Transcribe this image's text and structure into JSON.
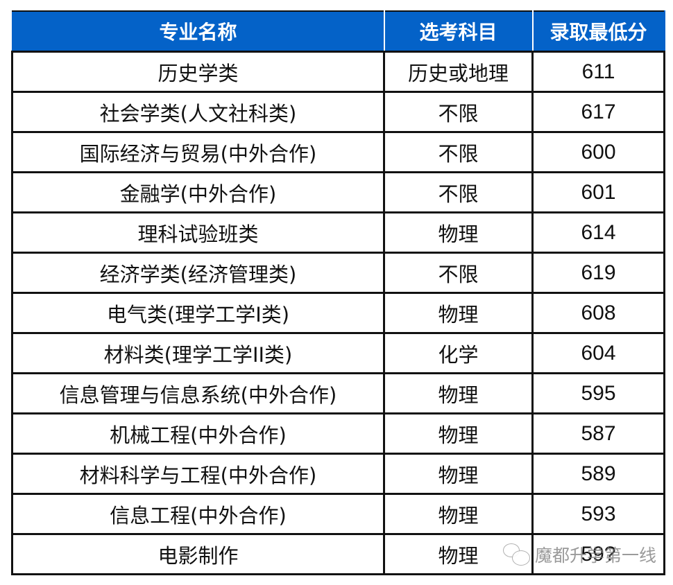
{
  "table": {
    "headers": [
      "专业名称",
      "选考科目",
      "录取最低分"
    ],
    "header_bg": "#0462c8",
    "rows": [
      {
        "major": "历史学类",
        "subject": "历史或地理",
        "score": "611"
      },
      {
        "major": "社会学类(人文社科类)",
        "subject": "不限",
        "score": "617"
      },
      {
        "major": "国际经济与贸易(中外合作)",
        "subject": "不限",
        "score": "600"
      },
      {
        "major": "金融学(中外合作)",
        "subject": "不限",
        "score": "601"
      },
      {
        "major": "理科试验班类",
        "subject": "物理",
        "score": "614"
      },
      {
        "major": "经济学类(经济管理类)",
        "subject": "不限",
        "score": "619"
      },
      {
        "major": "电气类(理学工学I类)",
        "subject": "物理",
        "score": "608"
      },
      {
        "major": "材料类(理学工学II类)",
        "subject": "化学",
        "score": "604"
      },
      {
        "major": "信息管理与信息系统(中外合作)",
        "subject": "物理",
        "score": "595"
      },
      {
        "major": "机械工程(中外合作)",
        "subject": "物理",
        "score": "587"
      },
      {
        "major": "材料科学与工程(中外合作)",
        "subject": "物理",
        "score": "589"
      },
      {
        "major": "信息工程(中外合作)",
        "subject": "物理",
        "score": "593"
      },
      {
        "major": "电影制作",
        "subject": "物理",
        "score": "59?"
      }
    ]
  },
  "watermark": {
    "icon": "wechat-icon",
    "text": "魔都升学第一线"
  }
}
